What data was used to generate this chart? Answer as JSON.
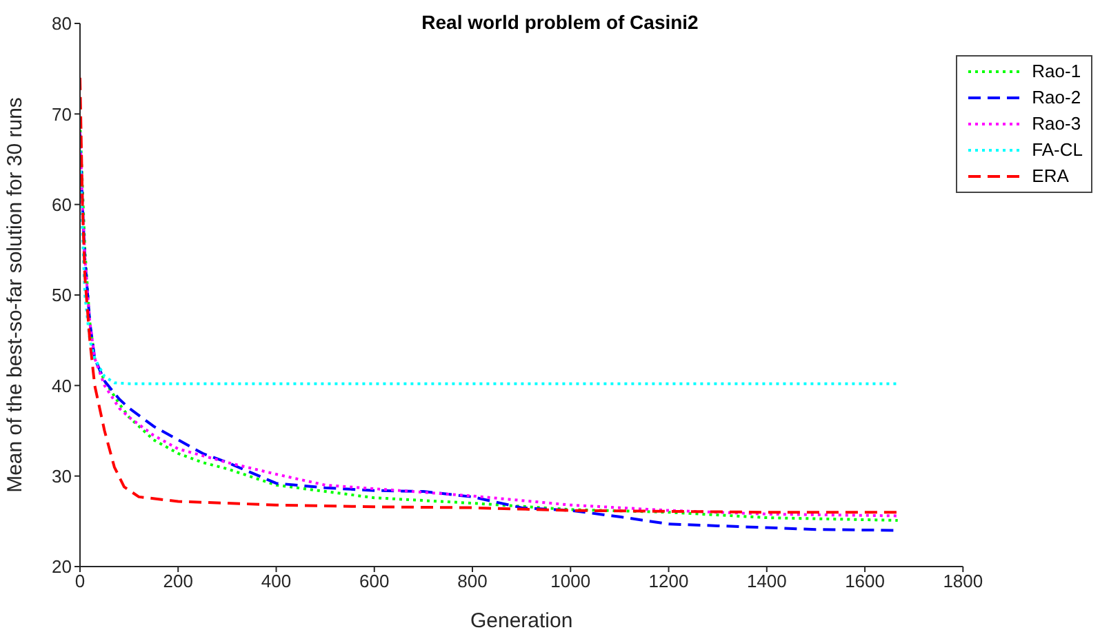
{
  "chart_data": {
    "type": "line",
    "title": "Real world problem of Casini2",
    "xlabel": "Generation",
    "ylabel": "Mean of the best-so-far solution for 30 runs",
    "xlim": [
      0,
      1800
    ],
    "xticks": [
      0,
      200,
      400,
      600,
      800,
      1000,
      1200,
      1400,
      1600,
      1800
    ],
    "ylim": [
      20,
      80
    ],
    "yticks": [
      20,
      30,
      40,
      50,
      60,
      70,
      80
    ],
    "grid": false,
    "legend": "top right",
    "marker": "none",
    "series": [
      {
        "name": "Rao-1",
        "color": "#00ff00",
        "line_style": "dotted",
        "x": [
          0,
          5,
          10,
          20,
          30,
          50,
          80,
          100,
          150,
          200,
          250,
          300,
          400,
          500,
          600,
          800,
          1000,
          1200,
          1400,
          1667
        ],
        "values": [
          69,
          62,
          55,
          47,
          43,
          40.5,
          38,
          36.5,
          34,
          32.5,
          31.5,
          30.8,
          29,
          28.3,
          27.6,
          27,
          26.3,
          26,
          25.4,
          25.1
        ]
      },
      {
        "name": "Rao-2",
        "color": "#0000ff",
        "line_style": "dashed",
        "x": [
          0,
          5,
          10,
          20,
          30,
          50,
          80,
          100,
          150,
          200,
          250,
          300,
          400,
          500,
          600,
          700,
          800,
          900,
          1000,
          1100,
          1200,
          1300,
          1400,
          1500,
          1667
        ],
        "values": [
          68,
          60,
          54,
          47,
          43,
          40.5,
          38.5,
          37.5,
          35.5,
          34,
          32.5,
          31.5,
          29.2,
          28.7,
          28.4,
          28.3,
          27.7,
          26.5,
          26.2,
          25.5,
          24.7,
          24.5,
          24.3,
          24.1,
          24
        ]
      },
      {
        "name": "Rao-3",
        "color": "#ff00ff",
        "line_style": "dotted",
        "x": [
          0,
          5,
          10,
          20,
          30,
          50,
          80,
          100,
          150,
          200,
          300,
          400,
          500,
          600,
          800,
          1000,
          1200,
          1400,
          1667
        ],
        "values": [
          68,
          60,
          54,
          47,
          43,
          40,
          37.5,
          36.5,
          34.5,
          33,
          31.5,
          30.2,
          29,
          28.6,
          27.8,
          26.8,
          26.2,
          25.8,
          25.6
        ]
      },
      {
        "name": "FA-CL",
        "color": "#00ffff",
        "line_style": "dotted",
        "x": [
          0,
          5,
          10,
          20,
          30,
          50,
          70,
          100,
          1667
        ],
        "values": [
          66,
          57,
          50,
          45,
          43,
          41,
          40.3,
          40.2,
          40.2
        ]
      },
      {
        "name": "ERA",
        "color": "#ff0000",
        "line_style": "dashed",
        "x": [
          0,
          5,
          10,
          20,
          30,
          50,
          70,
          90,
          120,
          200,
          400,
          600,
          800,
          1000,
          1200,
          1400,
          1667
        ],
        "values": [
          74,
          60,
          52,
          45,
          40,
          35,
          31,
          28.8,
          27.7,
          27.2,
          26.8,
          26.6,
          26.5,
          26.2,
          26.1,
          26,
          26
        ]
      }
    ]
  }
}
